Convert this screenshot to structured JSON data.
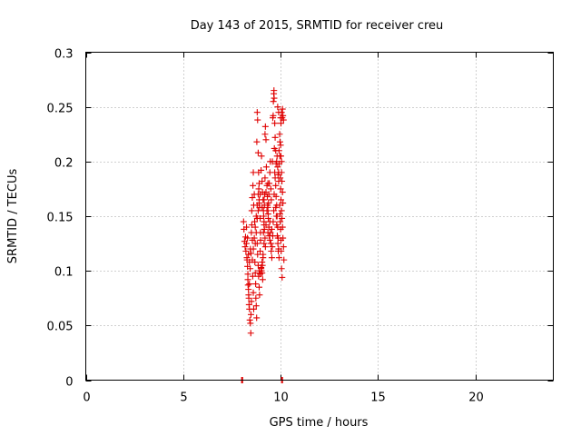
{
  "chart_data": {
    "type": "scatter",
    "title": "Day 143 of 2015, SRMTID for receiver creu",
    "xlabel": "GPS time / hours",
    "ylabel": "SRMTID / TECUs",
    "xlim": [
      0,
      24
    ],
    "ylim": [
      0,
      0.3
    ],
    "xticks": [
      0,
      5,
      10,
      15,
      20
    ],
    "xtick_labels": [
      "0",
      "5",
      "10",
      "15",
      "20"
    ],
    "yticks": [
      0,
      0.05,
      0.1,
      0.15,
      0.2,
      0.25,
      0.3
    ],
    "ytick_labels": [
      "0",
      "0.05",
      "0.1",
      "0.15",
      "0.2",
      "0.25",
      "0.3"
    ],
    "grid": true,
    "marker": "+",
    "point_color": "#e00000",
    "series": [
      {
        "name": "SRMTID",
        "points": [
          [
            8.0,
            0.0
          ],
          [
            8.02,
            0.0
          ],
          [
            8.05,
            0.0
          ],
          [
            10.05,
            0.0
          ],
          [
            10.1,
            0.0
          ],
          [
            8.1,
            0.145
          ],
          [
            8.12,
            0.138
          ],
          [
            8.15,
            0.127
          ],
          [
            8.18,
            0.122
          ],
          [
            8.2,
            0.131
          ],
          [
            8.22,
            0.118
          ],
          [
            8.25,
            0.125
          ],
          [
            8.27,
            0.112
          ],
          [
            8.3,
            0.104
          ],
          [
            8.32,
            0.097
          ],
          [
            8.33,
            0.087
          ],
          [
            8.35,
            0.083
          ],
          [
            8.37,
            0.075
          ],
          [
            8.38,
            0.069
          ],
          [
            8.4,
            0.065
          ],
          [
            8.42,
            0.055
          ],
          [
            8.45,
            0.052
          ],
          [
            8.47,
            0.043
          ],
          [
            8.48,
            0.06
          ],
          [
            8.5,
            0.072
          ],
          [
            8.3,
            0.13
          ],
          [
            8.35,
            0.115
          ],
          [
            8.4,
            0.108
          ],
          [
            8.45,
            0.12
          ],
          [
            8.5,
            0.135
          ],
          [
            8.52,
            0.142
          ],
          [
            8.55,
            0.128
          ],
          [
            8.57,
            0.095
          ],
          [
            8.6,
            0.08
          ],
          [
            8.62,
            0.065
          ],
          [
            8.25,
            0.14
          ],
          [
            8.28,
            0.11
          ],
          [
            8.32,
            0.092
          ],
          [
            8.36,
            0.078
          ],
          [
            8.4,
            0.088
          ],
          [
            8.44,
            0.102
          ],
          [
            8.48,
            0.116
          ],
          [
            8.52,
            0.155
          ],
          [
            8.55,
            0.167
          ],
          [
            8.58,
            0.178
          ],
          [
            8.6,
            0.19
          ],
          [
            8.62,
            0.16
          ],
          [
            8.65,
            0.17
          ],
          [
            8.67,
            0.145
          ],
          [
            8.68,
            0.108
          ],
          [
            8.7,
            0.098
          ],
          [
            8.72,
            0.088
          ],
          [
            8.73,
            0.075
          ],
          [
            8.75,
            0.068
          ],
          [
            8.77,
            0.057
          ],
          [
            8.78,
            0.218
          ],
          [
            8.8,
            0.245
          ],
          [
            8.82,
            0.238
          ],
          [
            8.85,
            0.208
          ],
          [
            8.87,
            0.19
          ],
          [
            8.88,
            0.175
          ],
          [
            8.9,
            0.165
          ],
          [
            8.92,
            0.158
          ],
          [
            8.95,
            0.148
          ],
          [
            8.97,
            0.135
          ],
          [
            8.8,
            0.125
          ],
          [
            8.82,
            0.115
          ],
          [
            8.85,
            0.105
          ],
          [
            8.87,
            0.095
          ],
          [
            8.9,
            0.085
          ],
          [
            8.92,
            0.078
          ],
          [
            8.95,
            0.118
          ],
          [
            8.97,
            0.128
          ],
          [
            9.0,
            0.102
          ],
          [
            9.02,
            0.1
          ],
          [
            9.05,
            0.098
          ],
          [
            9.07,
            0.105
          ],
          [
            9.08,
            0.092
          ],
          [
            9.1,
            0.112
          ],
          [
            9.12,
            0.135
          ],
          [
            9.13,
            0.15
          ],
          [
            9.15,
            0.142
          ],
          [
            9.17,
            0.16
          ],
          [
            9.18,
            0.17
          ],
          [
            9.2,
            0.185
          ],
          [
            9.0,
            0.192
          ],
          [
            9.02,
            0.205
          ],
          [
            9.05,
            0.182
          ],
          [
            9.07,
            0.172
          ],
          [
            9.1,
            0.165
          ],
          [
            9.12,
            0.155
          ],
          [
            9.15,
            0.145
          ],
          [
            9.17,
            0.138
          ],
          [
            9.2,
            0.13
          ],
          [
            9.22,
            0.122
          ],
          [
            9.2,
            0.225
          ],
          [
            9.22,
            0.232
          ],
          [
            9.25,
            0.22
          ],
          [
            9.27,
            0.195
          ],
          [
            9.3,
            0.178
          ],
          [
            9.32,
            0.168
          ],
          [
            9.35,
            0.158
          ],
          [
            9.37,
            0.148
          ],
          [
            9.4,
            0.14
          ],
          [
            9.42,
            0.132
          ],
          [
            9.3,
            0.155
          ],
          [
            9.33,
            0.16
          ],
          [
            9.36,
            0.152
          ],
          [
            9.38,
            0.162
          ],
          [
            9.4,
            0.17
          ],
          [
            9.42,
            0.18
          ],
          [
            9.45,
            0.19
          ],
          [
            9.47,
            0.2
          ],
          [
            9.5,
            0.175
          ],
          [
            9.52,
            0.165
          ],
          [
            9.45,
            0.145
          ],
          [
            9.48,
            0.135
          ],
          [
            9.5,
            0.125
          ],
          [
            9.52,
            0.118
          ],
          [
            9.55,
            0.112
          ],
          [
            9.57,
            0.122
          ],
          [
            9.6,
            0.132
          ],
          [
            9.62,
            0.145
          ],
          [
            9.65,
            0.155
          ],
          [
            9.67,
            0.17
          ],
          [
            9.6,
            0.24
          ],
          [
            9.62,
            0.242
          ],
          [
            9.63,
            0.255
          ],
          [
            9.65,
            0.262
          ],
          [
            9.66,
            0.265
          ],
          [
            9.67,
            0.258
          ],
          [
            9.7,
            0.235
          ],
          [
            9.72,
            0.222
          ],
          [
            9.75,
            0.21
          ],
          [
            9.77,
            0.198
          ],
          [
            9.7,
            0.19
          ],
          [
            9.72,
            0.185
          ],
          [
            9.75,
            0.178
          ],
          [
            9.77,
            0.168
          ],
          [
            9.8,
            0.16
          ],
          [
            9.82,
            0.15
          ],
          [
            9.85,
            0.14
          ],
          [
            9.87,
            0.13
          ],
          [
            9.9,
            0.12
          ],
          [
            9.92,
            0.112
          ],
          [
            9.8,
            0.2
          ],
          [
            9.82,
            0.205
          ],
          [
            9.85,
            0.195
          ],
          [
            9.87,
            0.188
          ],
          [
            9.9,
            0.182
          ],
          [
            9.92,
            0.21
          ],
          [
            9.95,
            0.225
          ],
          [
            9.97,
            0.218
          ],
          [
            10.0,
            0.24
          ],
          [
            10.02,
            0.235
          ],
          [
            9.85,
            0.25
          ],
          [
            9.9,
            0.245
          ],
          [
            10.05,
            0.245
          ],
          [
            10.08,
            0.24
          ],
          [
            10.1,
            0.248
          ],
          [
            10.12,
            0.242
          ],
          [
            10.15,
            0.238
          ],
          [
            10.0,
            0.215
          ],
          [
            10.02,
            0.205
          ],
          [
            10.05,
            0.2
          ],
          [
            10.0,
            0.175
          ],
          [
            10.02,
            0.165
          ],
          [
            10.05,
            0.155
          ],
          [
            10.07,
            0.148
          ],
          [
            10.1,
            0.14
          ],
          [
            10.12,
            0.13
          ],
          [
            10.15,
            0.122
          ],
          [
            10.17,
            0.11
          ],
          [
            10.05,
            0.102
          ],
          [
            10.08,
            0.094
          ],
          [
            9.95,
            0.16
          ],
          [
            9.97,
            0.152
          ],
          [
            9.98,
            0.145
          ],
          [
            10.0,
            0.138
          ],
          [
            10.02,
            0.128
          ],
          [
            10.03,
            0.118
          ],
          [
            10.05,
            0.19
          ],
          [
            10.07,
            0.182
          ],
          [
            10.1,
            0.172
          ],
          [
            10.12,
            0.162
          ],
          [
            8.9,
            0.1
          ],
          [
            8.95,
            0.097
          ],
          [
            9.0,
            0.103
          ],
          [
            9.05,
            0.108
          ],
          [
            9.1,
            0.115
          ],
          [
            9.15,
            0.125
          ],
          [
            9.25,
            0.142
          ],
          [
            9.35,
            0.135
          ],
          [
            9.45,
            0.128
          ],
          [
            9.55,
            0.138
          ],
          [
            8.7,
            0.125
          ],
          [
            8.75,
            0.135
          ],
          [
            8.8,
            0.148
          ],
          [
            8.85,
            0.155
          ],
          [
            8.9,
            0.162
          ],
          [
            8.95,
            0.17
          ],
          [
            9.05,
            0.158
          ],
          [
            9.15,
            0.165
          ],
          [
            9.25,
            0.172
          ],
          [
            9.35,
            0.18
          ],
          [
            8.55,
            0.11
          ],
          [
            8.6,
            0.12
          ],
          [
            8.65,
            0.13
          ],
          [
            8.7,
            0.14
          ],
          [
            8.75,
            0.15
          ],
          [
            8.8,
            0.16
          ],
          [
            8.85,
            0.17
          ],
          [
            8.9,
            0.18
          ],
          [
            9.58,
            0.2
          ],
          [
            9.68,
            0.212
          ],
          [
            9.75,
            0.158
          ],
          [
            9.78,
            0.15
          ],
          [
            9.8,
            0.142
          ],
          [
            9.83,
            0.132
          ],
          [
            9.86,
            0.125
          ],
          [
            9.88,
            0.118
          ],
          [
            9.9,
            0.19
          ],
          [
            9.93,
            0.198
          ],
          [
            9.96,
            0.205
          ],
          [
            9.98,
            0.185
          ]
        ]
      }
    ]
  }
}
